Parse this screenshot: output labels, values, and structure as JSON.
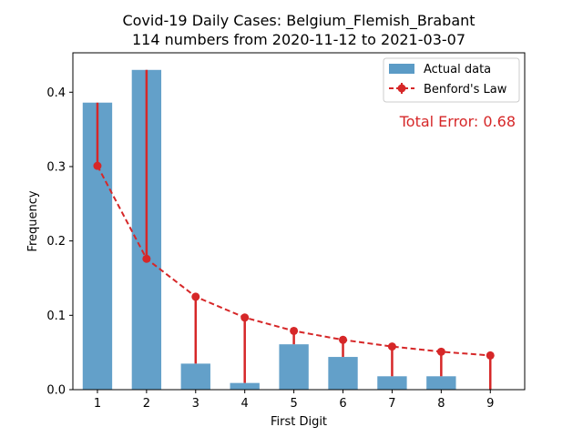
{
  "chart_data": {
    "type": "bar",
    "title_line1": "Covid-19 Daily Cases: Belgium_Flemish_Brabant",
    "title_line2": "114 numbers from 2020-11-12 to 2021-03-07",
    "xlabel": "First Digit",
    "ylabel": "Frequency",
    "categories": [
      "1",
      "2",
      "3",
      "4",
      "5",
      "6",
      "7",
      "8",
      "9"
    ],
    "y_ticks": [
      "0.0",
      "0.1",
      "0.2",
      "0.3",
      "0.4"
    ],
    "ylim": [
      0,
      0.453
    ],
    "xlim": [
      0.5,
      9.7
    ],
    "grid": false,
    "legend_position": "top-right",
    "series": [
      {
        "name": "Actual data",
        "style": "bar",
        "color": "#5b9bc6",
        "values": [
          0.386,
          0.43,
          0.035,
          0.009,
          0.061,
          0.044,
          0.018,
          0.018,
          0.0
        ]
      },
      {
        "name": "Benford's Law",
        "style": "dashed-line-markers-with-error-bars",
        "color": "#d62728",
        "values": [
          0.301,
          0.176,
          0.125,
          0.097,
          0.079,
          0.067,
          0.058,
          0.051,
          0.046
        ]
      }
    ],
    "annotation": "Total Error: 0.68"
  }
}
